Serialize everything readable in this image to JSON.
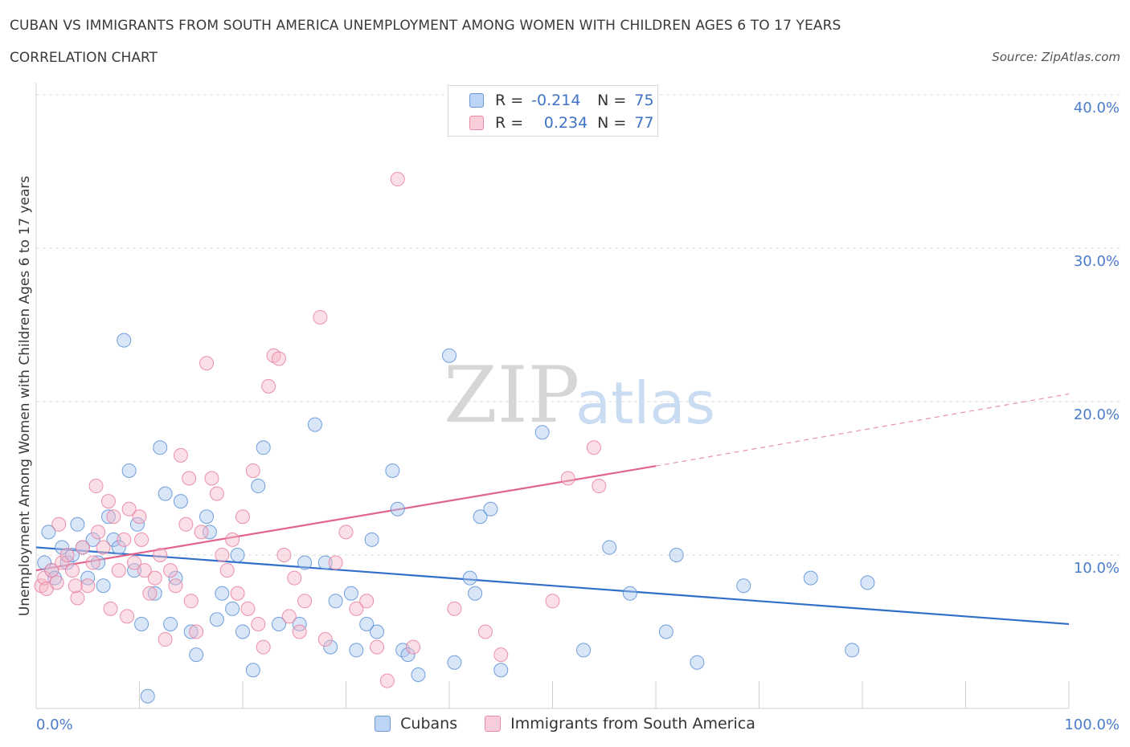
{
  "header": {
    "title": "CUBAN VS IMMIGRANTS FROM SOUTH AMERICA UNEMPLOYMENT AMONG WOMEN WITH CHILDREN AGES 6 TO 17 YEARS",
    "subtitle": "CORRELATION CHART",
    "source": "Source: ZipAtlas.com"
  },
  "watermark": {
    "zip": "ZIP",
    "atlas": "atlas"
  },
  "legend": {
    "rows": [
      {
        "r_label": "R =",
        "r_value": "-0.214",
        "n_label": "N =",
        "n_value": "75",
        "color": "#aac8f0"
      },
      {
        "r_label": "R =",
        "r_value": "0.234",
        "n_label": "N =",
        "n_value": "77",
        "color": "#f7b8c8"
      }
    ]
  },
  "bottom_legend": {
    "items": [
      {
        "label": "Cubans",
        "color": "#aac8f0"
      },
      {
        "label": "Immigrants from South America",
        "color": "#f7b8c8"
      }
    ]
  },
  "chart_data": {
    "type": "scatter",
    "title": "CUBAN VS IMMIGRANTS FROM SOUTH AMERICA UNEMPLOYMENT AMONG WOMEN WITH CHILDREN AGES 6 TO 17 YEARS",
    "ylabel": "Unemployment Among Women with Children Ages 6 to 17 years",
    "xlabel": "",
    "xlim": [
      0,
      100
    ],
    "ylim": [
      0,
      40
    ],
    "x_tick_labels": [
      "0.0%",
      "100.0%"
    ],
    "y_ticks": [
      10,
      20,
      30,
      40
    ],
    "y_tick_labels": [
      "10.0%",
      "20.0%",
      "30.0%",
      "40.0%"
    ],
    "grid": true,
    "legend_position": "top-center",
    "series": [
      {
        "name": "Cubans",
        "color": "#5b8fd6",
        "fill": "#aac8f0",
        "trend": {
          "x": [
            0,
            100
          ],
          "y": [
            10.5,
            5.5
          ],
          "color": "#2f6ec9"
        },
        "points": [
          [
            1.2,
            11.5
          ],
          [
            0.8,
            9.5
          ],
          [
            1.5,
            9.0
          ],
          [
            1.8,
            8.5
          ],
          [
            2.5,
            10.5
          ],
          [
            3.0,
            9.5
          ],
          [
            3.5,
            10.0
          ],
          [
            4.0,
            12.0
          ],
          [
            4.5,
            10.5
          ],
          [
            5.0,
            8.5
          ],
          [
            5.5,
            11.0
          ],
          [
            6.0,
            9.5
          ],
          [
            6.5,
            8.0
          ],
          [
            7.0,
            12.5
          ],
          [
            7.5,
            11.0
          ],
          [
            8.0,
            10.5
          ],
          [
            8.5,
            24.0
          ],
          [
            9.0,
            15.5
          ],
          [
            9.5,
            9.0
          ],
          [
            9.8,
            12.0
          ],
          [
            10.2,
            5.5
          ],
          [
            10.8,
            0.8
          ],
          [
            11.5,
            7.5
          ],
          [
            12.0,
            17.0
          ],
          [
            12.5,
            14.0
          ],
          [
            13.0,
            5.5
          ],
          [
            13.5,
            8.5
          ],
          [
            14.0,
            13.5
          ],
          [
            15.0,
            5.0
          ],
          [
            15.5,
            3.5
          ],
          [
            16.5,
            12.5
          ],
          [
            16.8,
            11.5
          ],
          [
            17.5,
            5.8
          ],
          [
            18.0,
            7.5
          ],
          [
            19.0,
            6.5
          ],
          [
            19.5,
            10.0
          ],
          [
            20.0,
            5.0
          ],
          [
            21.0,
            2.5
          ],
          [
            21.5,
            14.5
          ],
          [
            22.0,
            17.0
          ],
          [
            23.5,
            5.5
          ],
          [
            25.5,
            5.5
          ],
          [
            26.0,
            9.5
          ],
          [
            27.0,
            18.5
          ],
          [
            28.0,
            9.5
          ],
          [
            28.5,
            4.0
          ],
          [
            29.0,
            7.0
          ],
          [
            30.5,
            7.5
          ],
          [
            31.0,
            3.8
          ],
          [
            32.0,
            5.5
          ],
          [
            32.5,
            11.0
          ],
          [
            33.0,
            5.0
          ],
          [
            34.5,
            15.5
          ],
          [
            35.0,
            13.0
          ],
          [
            35.5,
            3.8
          ],
          [
            36.0,
            3.5
          ],
          [
            37.0,
            2.2
          ],
          [
            40.0,
            23.0
          ],
          [
            40.5,
            3.0
          ],
          [
            42.0,
            8.5
          ],
          [
            42.5,
            7.5
          ],
          [
            43.0,
            12.5
          ],
          [
            44.0,
            13.0
          ],
          [
            45.0,
            2.5
          ],
          [
            49.0,
            18.0
          ],
          [
            53.0,
            3.8
          ],
          [
            55.5,
            10.5
          ],
          [
            57.5,
            7.5
          ],
          [
            61.0,
            5.0
          ],
          [
            62.0,
            10.0
          ],
          [
            64.0,
            3.0
          ],
          [
            68.5,
            8.0
          ],
          [
            75.0,
            8.5
          ],
          [
            79.0,
            3.8
          ],
          [
            80.5,
            8.2
          ]
        ]
      },
      {
        "name": "Immigrants from South America",
        "color": "#e87fa0",
        "fill": "#f7b8c8",
        "trend": {
          "x": [
            0,
            60
          ],
          "y": [
            9.0,
            15.8
          ],
          "dashed_to": {
            "x": 100,
            "y": 20.5
          },
          "color": "#e0648c"
        },
        "points": [
          [
            0.5,
            8.0
          ],
          [
            0.8,
            8.5
          ],
          [
            1.0,
            7.8
          ],
          [
            1.5,
            9.0
          ],
          [
            2.0,
            8.2
          ],
          [
            2.5,
            9.5
          ],
          [
            3.0,
            10.0
          ],
          [
            3.5,
            9.0
          ],
          [
            4.0,
            7.2
          ],
          [
            4.5,
            10.5
          ],
          [
            5.0,
            8.0
          ],
          [
            5.5,
            9.5
          ],
          [
            5.8,
            14.5
          ],
          [
            6.0,
            11.5
          ],
          [
            6.5,
            10.5
          ],
          [
            7.0,
            13.5
          ],
          [
            7.2,
            6.5
          ],
          [
            7.5,
            12.5
          ],
          [
            8.0,
            9.0
          ],
          [
            8.5,
            11.0
          ],
          [
            8.8,
            6.0
          ],
          [
            9.0,
            13.0
          ],
          [
            9.5,
            9.5
          ],
          [
            10.0,
            12.5
          ],
          [
            10.2,
            11.0
          ],
          [
            10.5,
            9.0
          ],
          [
            11.0,
            7.5
          ],
          [
            11.5,
            8.5
          ],
          [
            12.0,
            10.0
          ],
          [
            12.5,
            4.5
          ],
          [
            13.0,
            9.0
          ],
          [
            13.5,
            8.0
          ],
          [
            14.0,
            16.5
          ],
          [
            14.5,
            12.0
          ],
          [
            15.0,
            7.0
          ],
          [
            15.5,
            5.0
          ],
          [
            16.0,
            11.5
          ],
          [
            16.5,
            22.5
          ],
          [
            17.0,
            15.0
          ],
          [
            17.5,
            14.0
          ],
          [
            18.0,
            10.0
          ],
          [
            18.5,
            9.0
          ],
          [
            19.0,
            11.0
          ],
          [
            19.5,
            7.5
          ],
          [
            20.0,
            12.5
          ],
          [
            20.5,
            6.5
          ],
          [
            21.0,
            15.5
          ],
          [
            21.5,
            5.5
          ],
          [
            22.0,
            4.0
          ],
          [
            22.5,
            21.0
          ],
          [
            23.0,
            23.0
          ],
          [
            23.5,
            22.8
          ],
          [
            24.0,
            10.0
          ],
          [
            24.5,
            6.0
          ],
          [
            25.0,
            8.5
          ],
          [
            25.5,
            5.0
          ],
          [
            26.0,
            7.0
          ],
          [
            27.5,
            25.5
          ],
          [
            28.0,
            4.5
          ],
          [
            29.0,
            9.5
          ],
          [
            30.0,
            11.5
          ],
          [
            31.0,
            6.5
          ],
          [
            32.0,
            7.0
          ],
          [
            33.0,
            4.0
          ],
          [
            34.0,
            1.8
          ],
          [
            35.0,
            34.5
          ],
          [
            36.5,
            4.0
          ],
          [
            40.5,
            6.5
          ],
          [
            43.5,
            5.0
          ],
          [
            45.0,
            3.5
          ],
          [
            50.0,
            7.0
          ],
          [
            51.5,
            15.0
          ],
          [
            54.0,
            17.0
          ],
          [
            54.5,
            14.5
          ],
          [
            14.8,
            15.0
          ],
          [
            2.2,
            12.0
          ],
          [
            3.8,
            8.0
          ]
        ]
      }
    ]
  }
}
